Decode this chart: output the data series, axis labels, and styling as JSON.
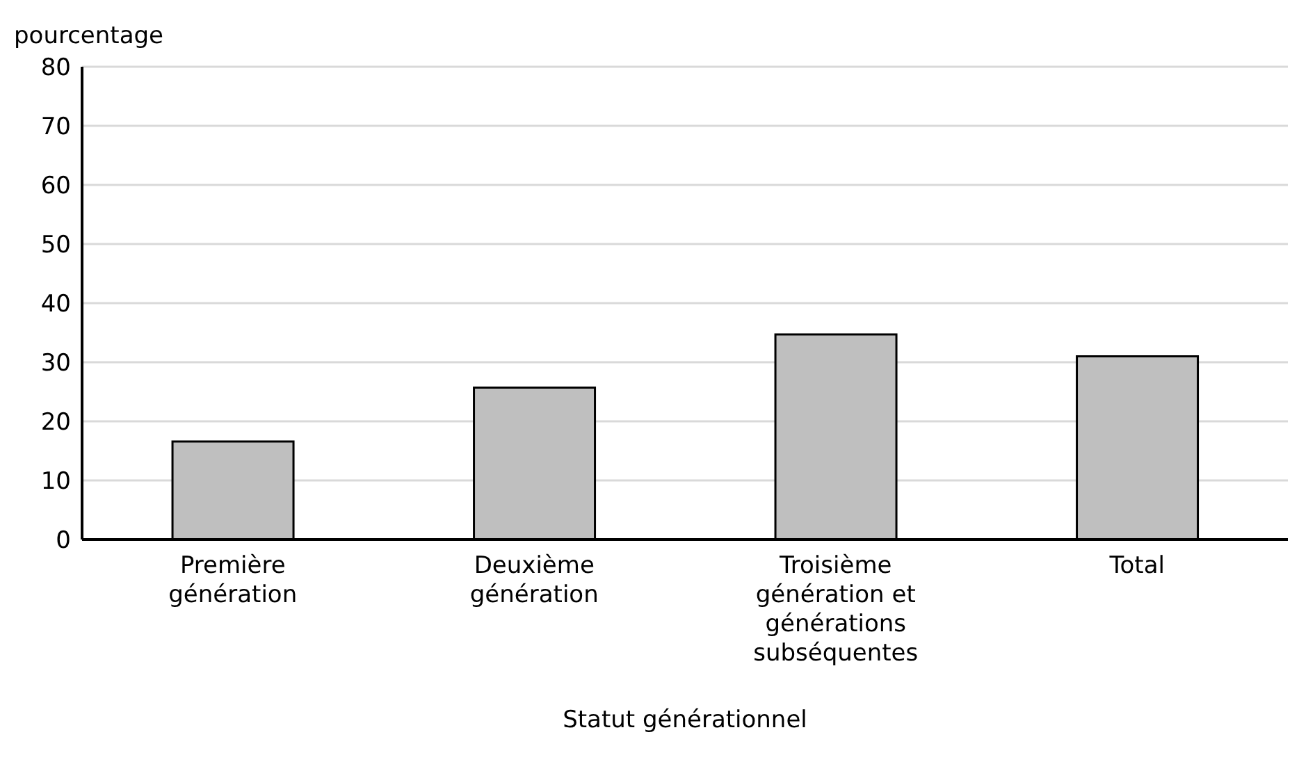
{
  "chart_data": {
    "type": "bar",
    "ylabel": "pourcentage",
    "xlabel": "Statut générationnel",
    "categories": [
      "Première génération",
      "Deuxième génération",
      "Troisième génération et générations subséquentes",
      "Total"
    ],
    "values": [
      16.6,
      25.7,
      34.7,
      31.0
    ],
    "color": "#bfbfbf",
    "ylim": [
      0,
      80
    ],
    "yticks": [
      0,
      10,
      20,
      30,
      40,
      50,
      60,
      70,
      80
    ],
    "grid": "y"
  }
}
